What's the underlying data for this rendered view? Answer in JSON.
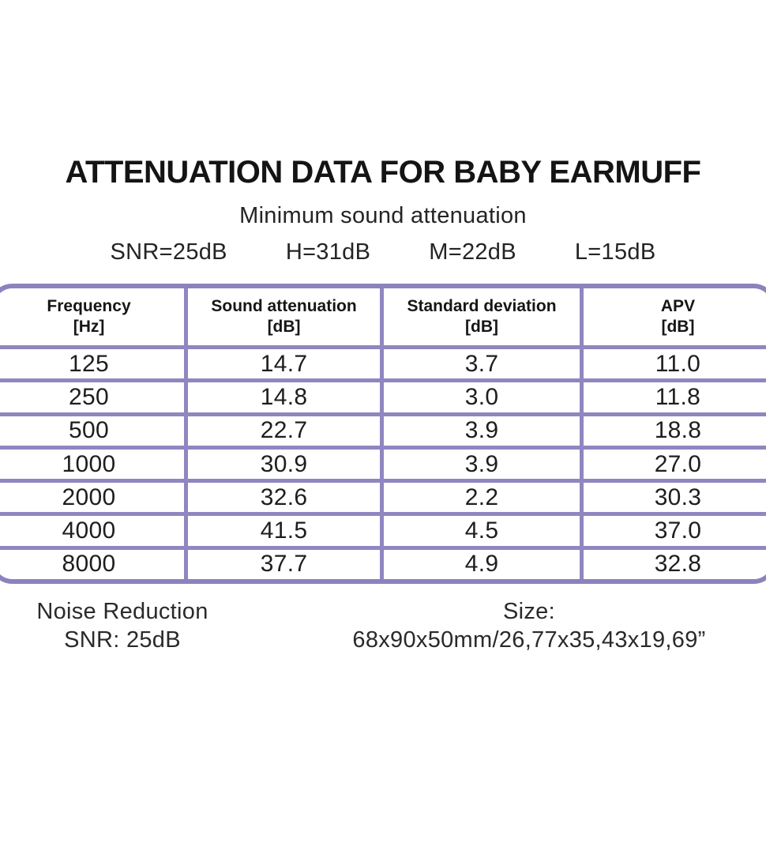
{
  "page": {
    "title": "ATTENUATION DATA FOR BABY EARMUFF",
    "subtitle": "Minimum sound attenuation"
  },
  "ratings": [
    "SNR=25dB",
    "H=31dB",
    "M=22dB",
    "L=15dB"
  ],
  "table": {
    "headers": [
      {
        "line1": "Frequency",
        "line2": "[Hz]"
      },
      {
        "line1": "Sound attenuation",
        "line2": "[dB]"
      },
      {
        "line1": "Standard deviation",
        "line2": "[dB]"
      },
      {
        "line1": "APV",
        "line2": "[dB]"
      }
    ],
    "rows": [
      [
        "125",
        "14.7",
        "3.7",
        "11.0"
      ],
      [
        "250",
        "14.8",
        "3.0",
        "11.8"
      ],
      [
        "500",
        "22.7",
        "3.9",
        "18.8"
      ],
      [
        "1000",
        "30.9",
        "3.9",
        "27.0"
      ],
      [
        "2000",
        "32.6",
        "2.2",
        "30.3"
      ],
      [
        "4000",
        "41.5",
        "4.5",
        "37.0"
      ],
      [
        "8000",
        "37.7",
        "4.9",
        "32.8"
      ]
    ]
  },
  "footer": {
    "noise_reduction_label": "Noise Reduction",
    "noise_reduction_value": "SNR: 25dB",
    "size_label": "Size:",
    "size_value": "68x90x50mm/26,77x35,43x19,69”"
  },
  "colors": {
    "table_border": "#9086c0",
    "text": "#1c1c1c",
    "background": "#ffffff"
  },
  "chart_data": {
    "type": "table",
    "title": "ATTENUATION DATA FOR BABY EARMUFF",
    "subtitle": "Minimum sound attenuation",
    "summary_values": {
      "SNR": "25dB",
      "H": "31dB",
      "M": "22dB",
      "L": "15dB"
    },
    "columns": [
      "Frequency [Hz]",
      "Sound attenuation [dB]",
      "Standard deviation [dB]",
      "APV [dB]"
    ],
    "rows": [
      [
        125,
        14.7,
        3.7,
        11.0
      ],
      [
        250,
        14.8,
        3.0,
        11.8
      ],
      [
        500,
        22.7,
        3.9,
        18.8
      ],
      [
        1000,
        30.9,
        3.9,
        27.0
      ],
      [
        2000,
        32.6,
        2.2,
        30.3
      ],
      [
        4000,
        41.5,
        4.5,
        37.0
      ],
      [
        8000,
        37.7,
        4.9,
        32.8
      ]
    ],
    "notes": [
      "Noise Reduction SNR: 25dB",
      "Size: 68x90x50mm/26,77x35,43x19,69”"
    ],
    "layout_hints": {
      "grid": "on",
      "border_color": "#9086c0",
      "outer_corner_radius_px": 30
    }
  }
}
